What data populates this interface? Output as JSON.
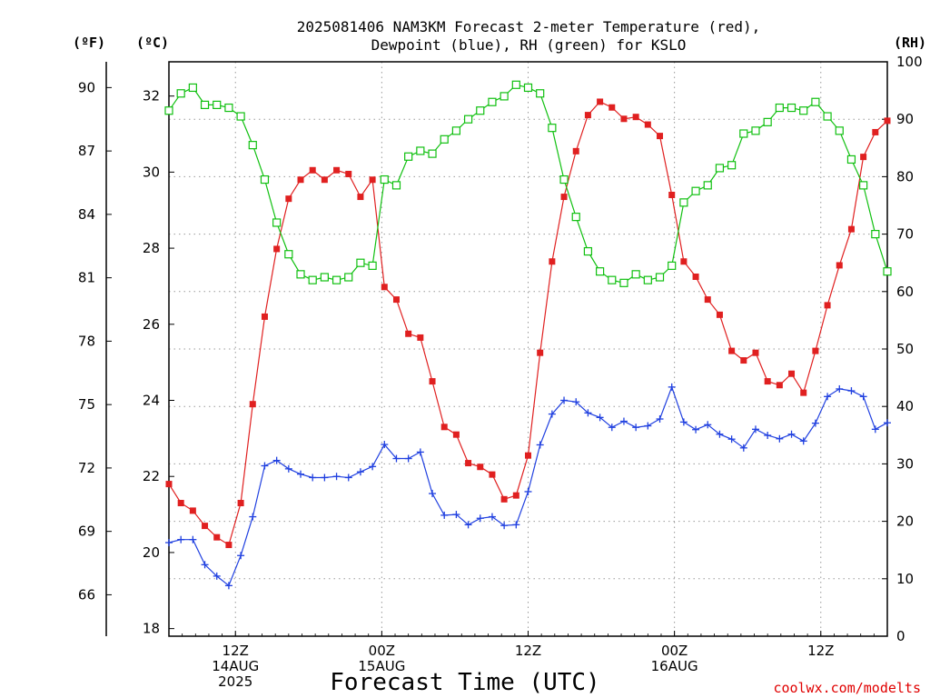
{
  "chart_data": {
    "type": "line",
    "title": "2025081406 NAM3KM Forecast 2-meter Temperature (red),",
    "title_line2": "Dewpoint (blue), RH (green) for KSLO",
    "xlabel": "Forecast Time (UTC)",
    "credit": "coolwx.com/modelts",
    "x_range_hours": [
      0,
      54
    ],
    "x_ticks": [
      {
        "hour": 5,
        "lines": [
          "12Z",
          "14AUG",
          "2025"
        ]
      },
      {
        "hour": 16,
        "lines": [
          "00Z",
          "15AUG"
        ]
      },
      {
        "hour": 27,
        "lines": [
          "12Z"
        ]
      },
      {
        "hour": 38,
        "lines": [
          "00Z",
          "16AUG"
        ]
      },
      {
        "hour": 49,
        "lines": [
          "12Z"
        ]
      }
    ],
    "axes": {
      "fahrenheit": {
        "label": "(ºF)",
        "ticks": [
          66,
          69,
          72,
          75,
          78,
          81,
          84,
          87,
          90
        ]
      },
      "celsius": {
        "label": "(ºC)",
        "range": [
          17.8,
          32.9
        ],
        "ticks": [
          18,
          20,
          22,
          24,
          26,
          28,
          30,
          32
        ]
      },
      "rh": {
        "label": "(RH)",
        "range": [
          0,
          100
        ],
        "ticks": [
          0,
          10,
          20,
          30,
          40,
          50,
          60,
          70,
          80,
          90,
          100
        ]
      }
    },
    "grid": true,
    "series": [
      {
        "name": "Temperature",
        "color": "#e02020",
        "marker": "filled-square",
        "values": [
          21.8,
          21.3,
          21.1,
          20.7,
          20.4,
          20.2,
          21.3,
          23.9,
          26.2,
          27.98,
          29.3,
          29.8,
          30.05,
          29.8,
          30.05,
          29.95,
          29.35,
          29.8,
          26.98,
          26.65,
          25.75,
          25.65,
          24.5,
          23.3,
          23.1,
          22.35,
          22.25,
          22.05,
          21.4,
          21.5,
          22.55,
          25.25,
          27.65,
          29.35,
          30.55,
          31.5,
          31.85,
          31.7,
          31.4,
          31.45,
          31.25,
          30.95,
          29.4,
          27.65,
          27.25,
          26.65,
          26.25,
          25.3,
          25.05,
          25.25,
          24.5,
          24.4,
          24.7,
          24.2,
          25.3,
          26.5,
          27.55,
          28.5,
          30.4,
          31.05,
          31.35
        ]
      },
      {
        "name": "Dewpoint",
        "color": "#2040e0",
        "marker": "plus",
        "values": [
          20.26,
          20.34,
          20.34,
          19.68,
          19.38,
          19.13,
          19.92,
          20.94,
          22.28,
          22.42,
          22.2,
          22.06,
          21.97,
          21.97,
          22.0,
          21.97,
          22.12,
          22.26,
          22.84,
          22.47,
          22.47,
          22.64,
          21.55,
          20.98,
          21.0,
          20.73,
          20.9,
          20.94,
          20.71,
          20.73,
          21.6,
          22.83,
          23.64,
          24.0,
          23.96,
          23.67,
          23.55,
          23.29,
          23.45,
          23.29,
          23.33,
          23.51,
          24.35,
          23.43,
          23.23,
          23.36,
          23.11,
          22.98,
          22.75,
          23.24,
          23.08,
          22.99,
          23.11,
          22.93,
          23.4,
          24.1,
          24.3,
          24.25,
          24.1,
          23.24,
          23.41
        ]
      },
      {
        "name": "RH",
        "color": "#10c010",
        "marker": "open-square",
        "values": [
          91.5,
          94.5,
          95.5,
          92.5,
          92.5,
          92,
          90.5,
          85.5,
          79.5,
          72,
          66.5,
          63,
          62,
          62.5,
          62,
          62.5,
          65,
          64.5,
          79.5,
          78.5,
          83.5,
          84.5,
          84,
          86.5,
          88,
          90,
          91.5,
          93,
          94,
          96,
          95.5,
          94.5,
          88.5,
          79.5,
          73,
          67,
          63.5,
          62,
          61.5,
          63,
          62,
          62.5,
          64.5,
          75.5,
          77.5,
          78.5,
          81.5,
          82,
          87.5,
          88,
          89.5,
          92,
          92,
          91.5,
          93,
          90.5,
          88,
          83,
          78.5,
          70,
          63.5
        ]
      }
    ]
  }
}
